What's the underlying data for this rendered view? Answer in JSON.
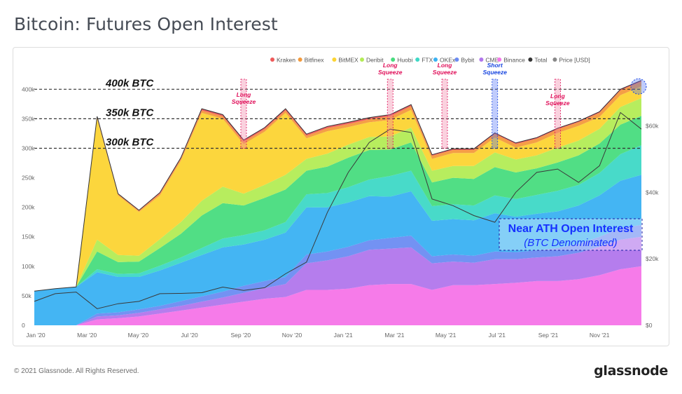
{
  "page": {
    "title": "Bitcoin: Futures Open Interest",
    "footer_copyright": "© 2021 Glassnode. All Rights Reserved.",
    "footer_logo": "glassnode",
    "watermark": "glassnode"
  },
  "chart_data": {
    "type": "area",
    "stacked": true,
    "legend_position": "top-right",
    "x_ticks": [
      "Jan '20",
      "Mar '20",
      "May '20",
      "Jul '20",
      "Sep '20",
      "Nov '20",
      "Jan '21",
      "Mar '21",
      "May '21",
      "Jul '21",
      "Sep '21",
      "Nov '21"
    ],
    "y_left": {
      "min": 0,
      "max": 400000,
      "ticks": [
        "0",
        "50k",
        "100k",
        "150k",
        "200k",
        "250k",
        "300k",
        "350k",
        "400k"
      ]
    },
    "y_right": {
      "min": 0,
      "max": 71000,
      "ticks": [
        "$0",
        "$20k",
        "$40k",
        "$60k"
      ]
    },
    "colors": {
      "Kraken": "#ee5a5a",
      "Bitfinex": "#f39a3c",
      "BitMEX": "#fcd433",
      "Deribit": "#b3ec55",
      "Huobi": "#48dc7e",
      "FTX": "#3ed8c6",
      "OKEx": "#3ab1f2",
      "Bybit": "#6c8cf2",
      "CME": "#b176ec",
      "Binance": "#f574e8",
      "Total": "#333333",
      "Price [USD]": "#888888"
    },
    "legend": [
      "Kraken",
      "Bitfinex",
      "BitMEX",
      "Deribit",
      "Huobi",
      "FTX",
      "OKEx",
      "Bybit",
      "CME",
      "Binance",
      "Total",
      "Price [USD]"
    ],
    "series_order_bottom_to_top": [
      "Binance",
      "CME",
      "Bybit",
      "OKEx",
      "FTX",
      "Huobi",
      "Deribit",
      "BitMEX",
      "Bitfinex",
      "Kraken"
    ],
    "dates": [
      "Jan '20",
      "Feb '20",
      "Feb '20",
      "Mar '20",
      "Mar '20",
      "Apr '20",
      "May '20",
      "Jun '20",
      "Jul '20",
      "Aug '20",
      "Sep '20",
      "Oct '20",
      "Nov '20",
      "Dec '20",
      "Jan '21",
      "Feb '21",
      "Mar '21",
      "Apr '21",
      "Apr '21",
      "May '21",
      "May '21",
      "Jun '21",
      "Jul '21",
      "Jul '21",
      "Aug '21",
      "Sep '21",
      "Sep '21",
      "Oct '21",
      "Nov '21",
      "Nov '21"
    ],
    "series": [
      {
        "name": "Binance",
        "values": [
          0,
          0,
          0,
          10000,
          12000,
          15000,
          20000,
          25000,
          30000,
          35000,
          40000,
          45000,
          48000,
          60000,
          60000,
          62000,
          68000,
          70000,
          70000,
          60000,
          68000,
          68000,
          70000,
          72000,
          75000,
          75000,
          78000,
          85000,
          95000,
          100000
        ]
      },
      {
        "name": "CME",
        "values": [
          0,
          0,
          0,
          5000,
          5000,
          6000,
          7000,
          8000,
          10000,
          12000,
          15000,
          18000,
          22000,
          45000,
          50000,
          55000,
          60000,
          60000,
          62000,
          45000,
          40000,
          38000,
          42000,
          40000,
          40000,
          42000,
          45000,
          48000,
          50000,
          50000
        ]
      },
      {
        "name": "Bybit",
        "values": [
          0,
          0,
          0,
          5000,
          5000,
          6000,
          6000,
          8000,
          9000,
          10000,
          12000,
          12000,
          12000,
          15000,
          15000,
          16000,
          16000,
          18000,
          20000,
          12000,
          12000,
          12000,
          13000,
          12000,
          12000,
          14000,
          15000,
          17000,
          20000,
          20000
        ]
      },
      {
        "name": "OKEx",
        "values": [
          58000,
          62000,
          65000,
          70000,
          60000,
          55000,
          60000,
          65000,
          70000,
          75000,
          70000,
          70000,
          75000,
          80000,
          75000,
          75000,
          75000,
          70000,
          75000,
          60000,
          60000,
          60000,
          65000,
          60000,
          62000,
          62000,
          65000,
          70000,
          80000,
          85000
        ]
      },
      {
        "name": "FTX",
        "values": [
          0,
          0,
          0,
          5000,
          5000,
          6000,
          8000,
          9000,
          12000,
          15000,
          16000,
          16000,
          18000,
          22000,
          24000,
          26000,
          28000,
          35000,
          35000,
          25000,
          25000,
          25000,
          30000,
          30000,
          32000,
          35000,
          35000,
          38000,
          45000,
          50000
        ]
      },
      {
        "name": "Huobi",
        "values": [
          0,
          0,
          0,
          30000,
          20000,
          20000,
          30000,
          40000,
          55000,
          60000,
          50000,
          55000,
          55000,
          40000,
          45000,
          50000,
          50000,
          45000,
          48000,
          40000,
          45000,
          45000,
          48000,
          45000,
          45000,
          48000,
          50000,
          50000,
          50000,
          50000
        ]
      },
      {
        "name": "Deribit",
        "values": [
          0,
          0,
          0,
          20000,
          12000,
          10000,
          15000,
          20000,
          25000,
          28000,
          20000,
          22000,
          25000,
          20000,
          22000,
          22000,
          22000,
          22000,
          25000,
          20000,
          20000,
          22000,
          25000,
          22000,
          22000,
          25000,
          25000,
          25000,
          30000,
          30000
        ]
      },
      {
        "name": "BitMEX",
        "values": [
          0,
          0,
          0,
          205000,
          101000,
          74000,
          74000,
          104000,
          149000,
          115000,
          84000,
          90000,
          105000,
          35000,
          38000,
          30000,
          25000,
          28000,
          30000,
          20000,
          22000,
          22000,
          25000,
          20000,
          22000,
          25000,
          25000,
          20000,
          20000,
          20000
        ]
      },
      {
        "name": "Bitfinex",
        "values": [
          0,
          0,
          0,
          2000,
          2000,
          2000,
          3000,
          3000,
          4000,
          4000,
          4000,
          4000,
          4000,
          4000,
          5000,
          5000,
          5000,
          6000,
          6000,
          5000,
          5000,
          5000,
          6000,
          6000,
          6000,
          6000,
          6000,
          7000,
          8000,
          8000
        ]
      },
      {
        "name": "Kraken",
        "values": [
          0,
          0,
          0,
          2000,
          1000,
          1000,
          2000,
          2000,
          3000,
          3000,
          3000,
          3000,
          3000,
          3000,
          3000,
          3000,
          3000,
          3000,
          3000,
          2000,
          2000,
          2000,
          2000,
          2000,
          2000,
          2000,
          2000,
          2000,
          2000,
          2000
        ]
      },
      {
        "name": "Price [USD]",
        "values": [
          7200,
          9500,
          10000,
          5000,
          6500,
          7200,
          9500,
          9600,
          9800,
          11500,
          10500,
          11300,
          15500,
          19000,
          34000,
          46000,
          55000,
          59000,
          58000,
          38000,
          36000,
          33000,
          31000,
          40000,
          46000,
          47000,
          43000,
          48000,
          64000,
          59000
        ]
      }
    ],
    "reference_lines": [
      {
        "label": "400k BTC",
        "value": 400000
      },
      {
        "label": "350k BTC",
        "value": 350000
      },
      {
        "label": "300k BTC",
        "value": 300000
      }
    ],
    "annotations": [
      {
        "label": [
          "Long",
          "Squeeze"
        ],
        "date": "Sep '20",
        "kind": "long"
      },
      {
        "label": [
          "Long",
          "Squeeze"
        ],
        "date": "Apr '21",
        "kind": "long"
      },
      {
        "label": [
          "Long",
          "Squeeze"
        ],
        "date": "May '21",
        "kind": "long"
      },
      {
        "label": [
          "Short",
          "Squeeze"
        ],
        "date": "Jul '21",
        "kind": "short"
      },
      {
        "label": [
          "Long",
          "Squeeze"
        ],
        "date": "Sep '21",
        "kind": "long"
      }
    ],
    "callout": {
      "title": "Near ATH Open Interest",
      "subtitle": "(BTC Denominated)"
    }
  }
}
